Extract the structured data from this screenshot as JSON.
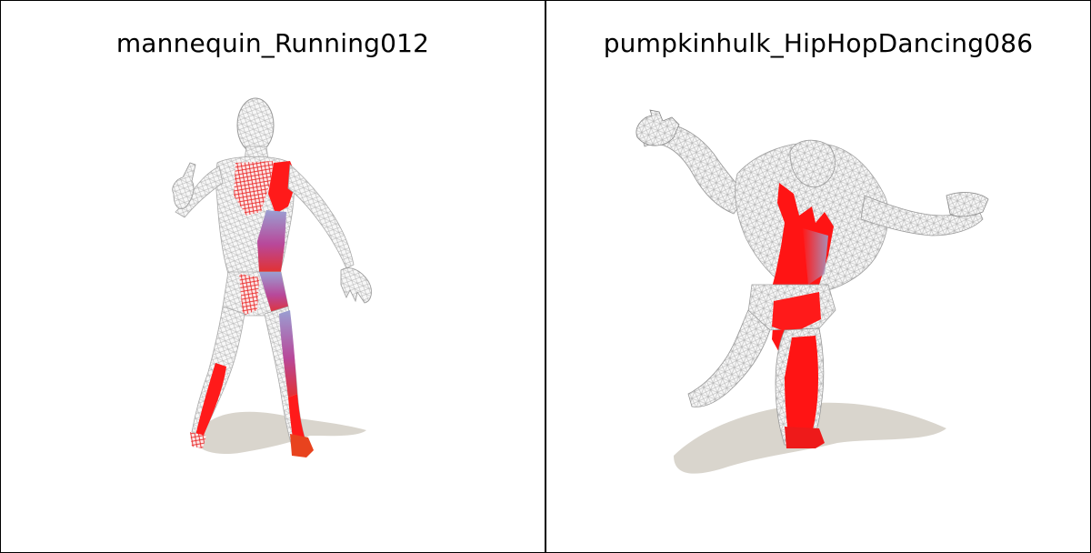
{
  "panels": [
    {
      "title": "mannequin_Running012",
      "figure": "mannequin-mesh",
      "highlight_color": "#ff0000",
      "secondary_color": "#9c7fc0",
      "shadow_color": "#d8d4cc",
      "wire_color": "#bdbdbd"
    },
    {
      "title": "pumpkinhulk_HipHopDancing086",
      "figure": "hulk-mesh",
      "highlight_color": "#ff0000",
      "secondary_color": "#9c7fc0",
      "shadow_color": "#d8d4cc",
      "wire_color": "#bdbdbd"
    }
  ]
}
